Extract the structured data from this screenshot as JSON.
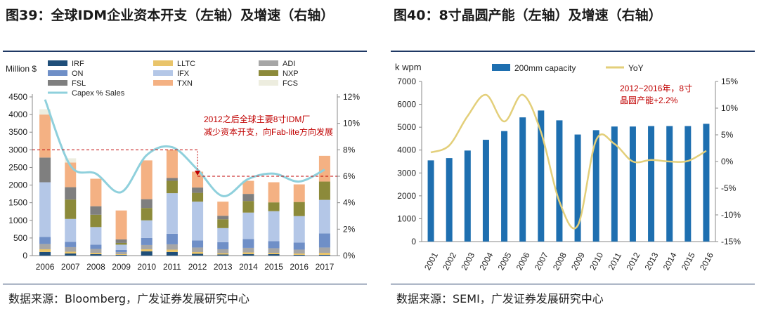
{
  "left": {
    "title": "图39：全球IDM企业资本开支（左轴）及增速（右轴）",
    "source": "数据来源：Bloomberg，广发证券发展研究中心"
  },
  "right": {
    "title": "图40：8寸晶圆产能（左轴）及增速（右轴）",
    "source": "数据来源：SEMI，广发证券发展研究中心"
  },
  "colors": {
    "IRF": "#1f4e79",
    "LLTC": "#e9c46a",
    "ADI": "#a6a6a6",
    "ON": "#6f8fc7",
    "IFX": "#b4c7e7",
    "NXP": "#8c8a3a",
    "FSL": "#7f7f7f",
    "TXN": "#f4b183",
    "FCS": "#ededdf",
    "capex_line": "#8fd0dc",
    "bar_blue": "#1e6fb0",
    "yoy_line": "#e3cf7a",
    "annotation": "#c00000",
    "title_rule": "#1f3864"
  },
  "chart_data": [
    {
      "type": "bar",
      "stacked": true,
      "title": "图39：全球IDM企业资本开支（左轴）及增速（右轴）",
      "ylabel": "Million $",
      "ylim": [
        0,
        4500
      ],
      "yticks": [
        "0",
        "500",
        "1000",
        "1500",
        "2000",
        "2500",
        "3000",
        "3500",
        "4000",
        "4500"
      ],
      "y2lim": [
        0,
        12
      ],
      "y2ticks": [
        "0%",
        "2%",
        "4%",
        "6%",
        "8%",
        "10%",
        "12%"
      ],
      "categories": [
        "2006",
        "2007",
        "2008",
        "2009",
        "2010",
        "2011",
        "2012",
        "2013",
        "2014",
        "2015",
        "2016",
        "2017"
      ],
      "legend": [
        "IRF",
        "LLTC",
        "ADI",
        "ON",
        "IFX",
        "NXP",
        "FSL",
        "TXN",
        "FCS",
        "Capex % Sales"
      ],
      "series": [
        {
          "name": "IRF",
          "values": [
            100,
            60,
            40,
            20,
            120,
            100,
            50,
            30,
            40,
            40,
            20,
            20
          ]
        },
        {
          "name": "LLTC",
          "values": [
            80,
            50,
            40,
            20,
            60,
            70,
            50,
            40,
            50,
            40,
            40,
            60
          ]
        },
        {
          "name": "ADI",
          "values": [
            150,
            130,
            110,
            60,
            120,
            150,
            130,
            110,
            130,
            130,
            110,
            150
          ]
        },
        {
          "name": "ON",
          "values": [
            200,
            150,
            120,
            60,
            200,
            300,
            200,
            200,
            250,
            200,
            200,
            400
          ]
        },
        {
          "name": "IFX",
          "values": [
            1550,
            650,
            500,
            150,
            500,
            1150,
            1100,
            400,
            750,
            850,
            750,
            950
          ]
        },
        {
          "name": "NXP",
          "values": [
            0,
            550,
            350,
            50,
            350,
            350,
            250,
            250,
            330,
            250,
            400,
            520
          ]
        },
        {
          "name": "FSL",
          "values": [
            700,
            350,
            240,
            100,
            250,
            80,
            150,
            100,
            200,
            0,
            0,
            0
          ]
        },
        {
          "name": "TXN",
          "values": [
            1220,
            700,
            780,
            820,
            1100,
            800,
            450,
            400,
            370,
            570,
            500,
            730
          ]
        },
        {
          "name": "FCS",
          "values": [
            150,
            120,
            0,
            0,
            0,
            0,
            0,
            0,
            0,
            0,
            0,
            0
          ]
        }
      ],
      "line": {
        "name": "Capex % Sales",
        "values": [
          11.8,
          6.8,
          6.2,
          4.8,
          7.6,
          8.2,
          6.5,
          4.5,
          5.8,
          6.2,
          5.6,
          6.5
        ]
      },
      "annotation": "2012之后全球主要8寸IDM厂减少资本开支，向Fab-lite方向发展",
      "reference_lines": [
        {
          "axis": "left",
          "value": 3000
        },
        {
          "axis": "right",
          "value": 6
        }
      ]
    },
    {
      "type": "bar",
      "title": "图40：8寸晶圆产能（左轴）及增速（右轴）",
      "ylabel": "k wpm",
      "ylim": [
        0,
        7000
      ],
      "yticks": [
        "0",
        "1000",
        "2000",
        "3000",
        "4000",
        "5000",
        "6000",
        "7000"
      ],
      "y2lim": [
        -15,
        15
      ],
      "y2ticks": [
        "-15%",
        "-10%",
        "-5%",
        "0%",
        "5%",
        "10%",
        "15%"
      ],
      "categories": [
        "2001",
        "2002",
        "2003",
        "2004",
        "2005",
        "2006",
        "2007",
        "2008",
        "2009",
        "2010",
        "2011",
        "2012",
        "2013",
        "2014",
        "2015",
        "2016"
      ],
      "legend": [
        "200mm capacity",
        "YoY"
      ],
      "series": [
        {
          "name": "200mm capacity",
          "values": [
            3550,
            3650,
            3980,
            4450,
            4830,
            5430,
            5730,
            5300,
            4680,
            4870,
            5030,
            5030,
            5050,
            5050,
            5050,
            5150
          ]
        }
      ],
      "line": {
        "name": "YoY",
        "values": [
          1.7,
          3.0,
          8.5,
          12.5,
          7.5,
          12.5,
          5.5,
          -7.5,
          -12.0,
          4.0,
          3.3,
          0.0,
          0.3,
          0.0,
          0.1,
          2.0
        ]
      },
      "annotation": "2012~2016年，8寸晶圆产能+2.2%"
    }
  ]
}
